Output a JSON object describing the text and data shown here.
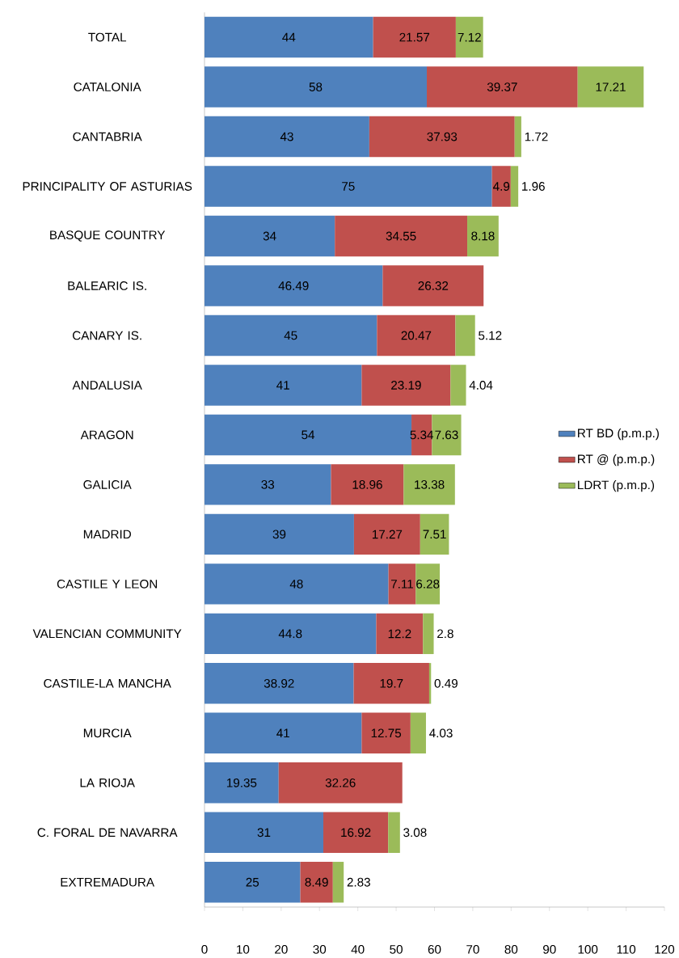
{
  "chart_data": {
    "type": "bar",
    "orientation": "horizontal",
    "stacked": true,
    "data_labels": true,
    "legend": "right",
    "grid": false,
    "categories": [
      "TOTAL",
      "CATALONIA",
      "CANTABRIA",
      "PRINCIPALITY OF ASTURIAS",
      "BASQUE COUNTRY",
      "BALEARIC IS.",
      "CANARY IS.",
      "ANDALUSIA",
      "ARAGON",
      "GALICIA",
      "MADRID",
      "CASTILE Y LEON",
      "VALENCIAN COMMUNITY",
      "CASTILE-LA MANCHA",
      "MURCIA",
      "LA RIOJA",
      "C. FORAL DE NAVARRA",
      "EXTREMADURA"
    ],
    "series": [
      {
        "name": "RT BD (p.m.p.)",
        "color": "#4f81bd",
        "values": [
          44,
          58,
          43,
          75,
          34,
          46.49,
          45,
          41,
          54,
          33,
          39,
          48,
          44.8,
          38.92,
          41,
          19.35,
          31,
          25
        ]
      },
      {
        "name": "RT @ (p.m.p.)",
        "color": "#c0504d",
        "values": [
          21.57,
          39.37,
          37.93,
          4.9,
          34.55,
          26.32,
          20.47,
          23.19,
          5.34,
          18.96,
          17.27,
          7.11,
          12.2,
          19.7,
          12.75,
          32.26,
          16.92,
          8.49
        ]
      },
      {
        "name": "LDRT (p.m.p.)",
        "color": "#9bbb59",
        "values": [
          7.12,
          17.21,
          1.72,
          1.96,
          8.18,
          null,
          5.12,
          4.04,
          7.63,
          13.38,
          7.51,
          6.28,
          2.8,
          0.49,
          4.03,
          null,
          3.08,
          2.83
        ]
      }
    ],
    "xlim": [
      0,
      120
    ],
    "xticks": [
      0,
      10,
      20,
      30,
      40,
      50,
      60,
      70,
      80,
      90,
      100,
      110,
      120
    ]
  }
}
